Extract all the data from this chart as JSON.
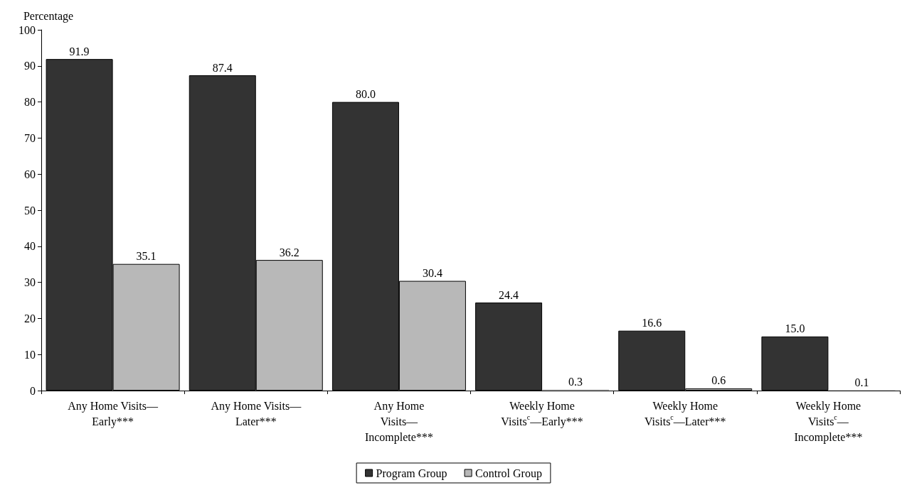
{
  "chart_data": {
    "type": "bar",
    "ylabel": "Percentage",
    "categories": [
      "Any Home Visits—\nEarly***",
      "Any Home Visits—\nLater***",
      "Any Home\nVisits—\nIncomplete***",
      "Weekly Home\nVisits$^{c}$—Early***",
      "Weekly Home\nVisits$^{c}$—Later***",
      "Weekly Home\nVisits$^{c}$—\nIncomplete***"
    ],
    "series": [
      {
        "name": "Program Group",
        "color": "#333333",
        "values": [
          91.9,
          87.4,
          80.0,
          24.4,
          16.6,
          15.0
        ],
        "value_labels": [
          "91.9",
          "87.4",
          "80.0",
          "24.4",
          "16.6",
          "15.0"
        ]
      },
      {
        "name": "Control Group",
        "color": "#b8b8b8",
        "values": [
          35.1,
          36.2,
          30.4,
          0.3,
          0.6,
          0.1
        ],
        "value_labels": [
          "35.1",
          "36.2",
          "30.4",
          "0.3",
          "0.6",
          "0.1"
        ]
      }
    ],
    "ylim": [
      0,
      100
    ],
    "yticks": [
      0,
      10,
      20,
      30,
      40,
      50,
      60,
      70,
      80,
      90,
      100
    ],
    "grid": false,
    "legend": "bottom"
  }
}
